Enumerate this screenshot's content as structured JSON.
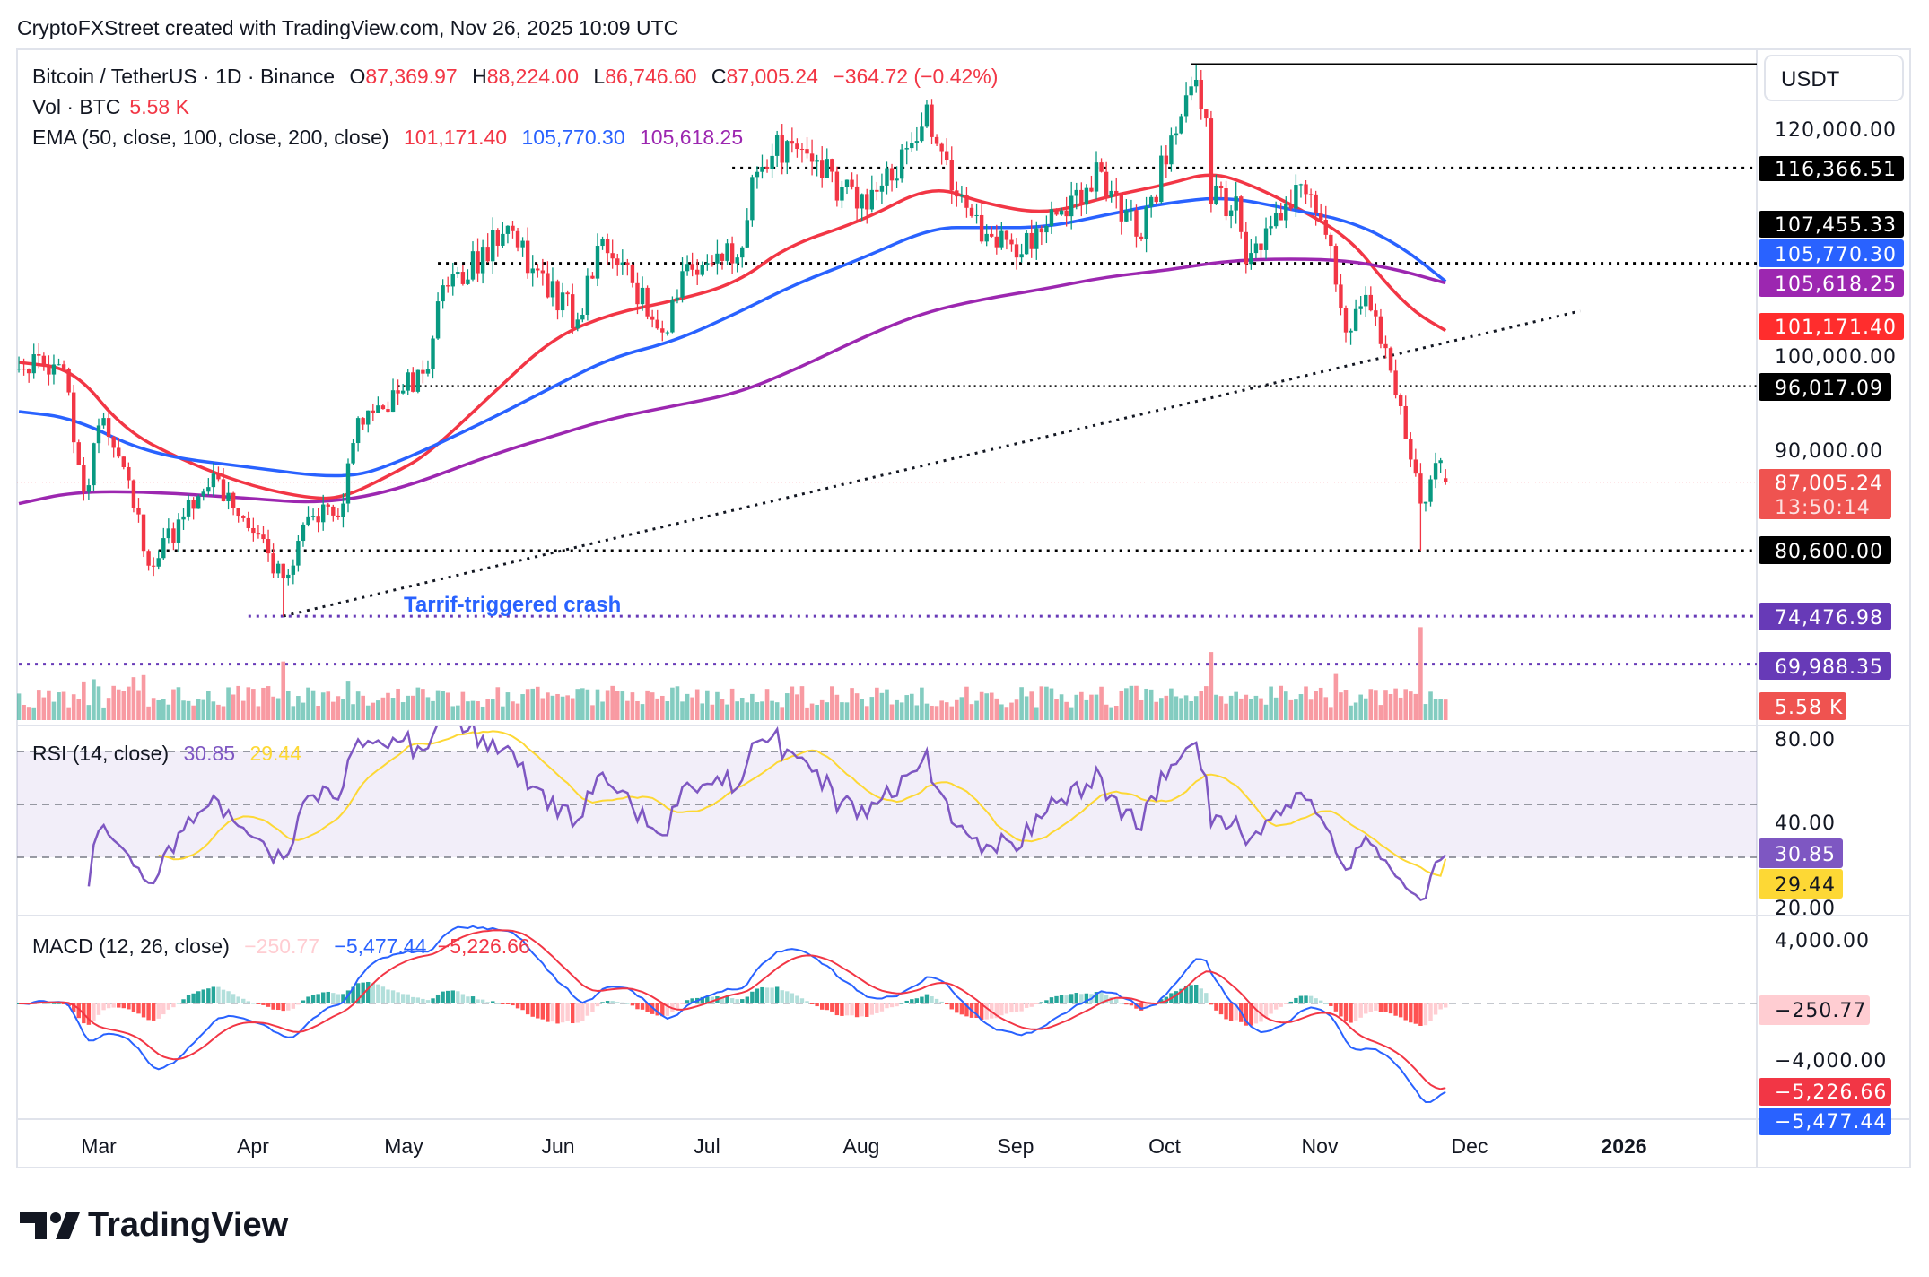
{
  "header": {
    "caption": "CryptoFXStreet created with TradingView.com, Nov 26, 2025 10:09 UTC"
  },
  "legend": {
    "symbol": "Bitcoin / TetherUS · 1D · Binance",
    "o_label": "O",
    "o": "87,369.97",
    "h_label": "H",
    "h": "88,224.00",
    "l_label": "L",
    "l": "86,746.60",
    "c_label": "C",
    "c": "87,005.24",
    "change": "−364.72 (−0.42%)",
    "vol_label": "Vol · BTC",
    "vol": "5.58 K",
    "ema_label": "EMA (50, close, 100, close, 200, close)",
    "ema50": "101,171.40",
    "ema100": "105,770.30",
    "ema200": "105,618.25",
    "rsi_label": "RSI (14, close)",
    "rsi": "30.85",
    "rsi_ma": "29.44",
    "macd_label": "MACD (12, 26, close)",
    "macd_hist": "−250.77",
    "macd": "−5,477.44",
    "macd_signal": "−5,226.66"
  },
  "price_axis": {
    "currency": "USDT",
    "ticks": [
      "120,000.00",
      "100,000.00",
      "90,000.00"
    ],
    "labels": {
      "level_116": "116,366.51",
      "level_107": "107,455.33",
      "ema100": "105,770.30",
      "ema200": "105,618.25",
      "ema50": "101,171.40",
      "level_96": "96,017.09",
      "last": "87,005.24",
      "countdown": "13:50:14",
      "level_80": "80,600.00",
      "level_74": "74,476.98",
      "level_69": "69,988.35",
      "volume": "5.58 K"
    },
    "rsi_ticks": [
      "80.00",
      "40.00",
      "20.00"
    ],
    "rsi_value": "30.85",
    "rsi_ma_value": "29.44",
    "macd_ticks": [
      "4,000.00",
      "−4,000.00"
    ],
    "macd_hist": "−250.77",
    "macd_signal": "−5,226.66",
    "macd": "−5,477.44"
  },
  "time_axis": [
    "Mar",
    "Apr",
    "May",
    "Jun",
    "Jul",
    "Aug",
    "Sep",
    "Oct",
    "Nov",
    "Dec",
    "2026"
  ],
  "annotation": {
    "text": "Tarrif-triggered crash",
    "color": "#2962ff"
  },
  "branding": {
    "logo_text": "TradingView"
  },
  "colors": {
    "up": "#089981",
    "down": "#f23645",
    "ema50": "#f23645",
    "ema100": "#2962ff",
    "ema200": "#9c27b0",
    "rsi": "#7e57c2",
    "rsi_ma": "#fdd835",
    "macd": "#2962ff",
    "signal": "#f23645",
    "levels_dark": "#000000",
    "levels_purple": "#673ab7"
  },
  "chart_data": {
    "type": "candlestick",
    "title": "Bitcoin / TetherUS · 1D · Binance",
    "ylim": [
      64000,
      127000
    ],
    "x_range": [
      "2025-02-13",
      "2026-01-10"
    ],
    "last_candle": {
      "date": "2025-11-26",
      "open": 87369.97,
      "high": 88224.0,
      "low": 86746.6,
      "close": 87005.24
    },
    "close_keypoints": [
      {
        "date": "2025-02-13",
        "close": 97600
      },
      {
        "date": "2025-02-22",
        "close": 97600
      },
      {
        "date": "2025-02-26",
        "close": 86100
      },
      {
        "date": "2025-03-02",
        "close": 93000
      },
      {
        "date": "2025-03-06",
        "close": 88400
      },
      {
        "date": "2025-03-11",
        "close": 79200
      },
      {
        "date": "2025-03-18",
        "close": 83800
      },
      {
        "date": "2025-03-24",
        "close": 87800
      },
      {
        "date": "2025-03-31",
        "close": 82700
      },
      {
        "date": "2025-04-07",
        "close": 78000,
        "low": 74476.98
      },
      {
        "date": "2025-04-12",
        "close": 83800
      },
      {
        "date": "2025-04-19",
        "close": 85000
      },
      {
        "date": "2025-04-22",
        "close": 93000
      },
      {
        "date": "2025-04-30",
        "close": 95300
      },
      {
        "date": "2025-05-06",
        "close": 97600
      },
      {
        "date": "2025-05-08",
        "close": 103900
      },
      {
        "date": "2025-05-21",
        "close": 110200
      },
      {
        "date": "2025-05-28",
        "close": 106800
      },
      {
        "date": "2025-06-05",
        "close": 102200
      },
      {
        "date": "2025-06-09",
        "close": 109100
      },
      {
        "date": "2025-06-16",
        "close": 105600
      },
      {
        "date": "2025-06-22",
        "close": 101000
      },
      {
        "date": "2025-06-27",
        "close": 107400
      },
      {
        "date": "2025-07-07",
        "close": 108000
      },
      {
        "date": "2025-07-11",
        "close": 116000
      },
      {
        "date": "2025-07-17",
        "close": 118900
      },
      {
        "date": "2025-08-02",
        "close": 112500
      },
      {
        "date": "2025-08-12",
        "close": 118900
      },
      {
        "date": "2025-08-14",
        "close": 122300
      },
      {
        "date": "2025-08-20",
        "close": 113700
      },
      {
        "date": "2025-08-26",
        "close": 110200
      },
      {
        "date": "2025-09-01",
        "close": 108000
      },
      {
        "date": "2025-09-09",
        "close": 112000
      },
      {
        "date": "2025-09-18",
        "close": 116000
      },
      {
        "date": "2025-09-26",
        "close": 109700
      },
      {
        "date": "2025-10-02",
        "close": 119400
      },
      {
        "date": "2025-10-06",
        "close": 124000
      },
      {
        "date": "2025-10-09",
        "close": 121000
      },
      {
        "date": "2025-10-10",
        "close": 113000
      },
      {
        "date": "2025-10-15",
        "close": 113700
      },
      {
        "date": "2025-10-17",
        "close": 107400
      },
      {
        "date": "2025-10-27",
        "close": 114800
      },
      {
        "date": "2025-11-03",
        "close": 109100
      },
      {
        "date": "2025-11-06",
        "close": 101000
      },
      {
        "date": "2025-11-10",
        "close": 104500
      },
      {
        "date": "2025-11-13",
        "close": 99900
      },
      {
        "date": "2025-11-17",
        "close": 94100
      },
      {
        "date": "2025-11-20",
        "close": 87800
      },
      {
        "date": "2025-11-21",
        "close": 85000,
        "low": 80600
      },
      {
        "date": "2025-11-24",
        "close": 88800
      },
      {
        "date": "2025-11-26",
        "close": 87005.24
      }
    ],
    "ema_series": [
      {
        "name": "EMA 50",
        "color": "#f23645",
        "points": [
          [
            "2025-02-13",
            98200
          ],
          [
            "2025-02-24",
            97600
          ],
          [
            "2025-03-06",
            91900
          ],
          [
            "2025-03-18",
            89000
          ],
          [
            "2025-03-31",
            86700
          ],
          [
            "2025-04-12",
            85500
          ],
          [
            "2025-04-19",
            85500
          ],
          [
            "2025-04-29",
            87800
          ],
          [
            "2025-05-06",
            89600
          ],
          [
            "2025-05-19",
            95300
          ],
          [
            "2025-05-31",
            100500
          ],
          [
            "2025-06-12",
            102800
          ],
          [
            "2025-06-24",
            103900
          ],
          [
            "2025-07-07",
            105600
          ],
          [
            "2025-07-17",
            109100
          ],
          [
            "2025-08-01",
            111400
          ],
          [
            "2025-08-15",
            114800
          ],
          [
            "2025-08-25",
            113100
          ],
          [
            "2025-09-07",
            112000
          ],
          [
            "2025-09-19",
            113700
          ],
          [
            "2025-10-01",
            114800
          ],
          [
            "2025-10-10",
            116000
          ],
          [
            "2025-10-18",
            114800
          ],
          [
            "2025-10-28",
            112500
          ],
          [
            "2025-11-07",
            109700
          ],
          [
            "2025-11-14",
            105600
          ],
          [
            "2025-11-20",
            102800
          ],
          [
            "2025-11-26",
            101171.4
          ]
        ]
      },
      {
        "name": "EMA 100",
        "color": "#2962ff",
        "points": [
          [
            "2025-02-13",
            93600
          ],
          [
            "2025-02-24",
            93000
          ],
          [
            "2025-03-11",
            89600
          ],
          [
            "2025-03-31",
            88400
          ],
          [
            "2025-04-19",
            87300
          ],
          [
            "2025-04-29",
            88600
          ],
          [
            "2025-05-19",
            93000
          ],
          [
            "2025-05-31",
            95900
          ],
          [
            "2025-06-12",
            98700
          ],
          [
            "2025-06-24",
            100100
          ],
          [
            "2025-07-07",
            102800
          ],
          [
            "2025-07-19",
            105600
          ],
          [
            "2025-08-01",
            107900
          ],
          [
            "2025-08-15",
            110800
          ],
          [
            "2025-08-25",
            110800
          ],
          [
            "2025-09-07",
            110800
          ],
          [
            "2025-09-19",
            112000
          ],
          [
            "2025-10-01",
            113100
          ],
          [
            "2025-10-13",
            113700
          ],
          [
            "2025-10-26",
            112500
          ],
          [
            "2025-11-07",
            111400
          ],
          [
            "2025-11-17",
            109100
          ],
          [
            "2025-11-26",
            105770.3
          ]
        ]
      },
      {
        "name": "EMA 200",
        "color": "#9c27b0",
        "points": [
          [
            "2025-02-13",
            85000
          ],
          [
            "2025-02-24",
            86100
          ],
          [
            "2025-03-11",
            86100
          ],
          [
            "2025-03-31",
            85500
          ],
          [
            "2025-04-14",
            85000
          ],
          [
            "2025-04-29",
            86100
          ],
          [
            "2025-05-19",
            89600
          ],
          [
            "2025-05-31",
            91300
          ],
          [
            "2025-06-12",
            93000
          ],
          [
            "2025-06-24",
            94100
          ],
          [
            "2025-07-07",
            95300
          ],
          [
            "2025-07-19",
            97600
          ],
          [
            "2025-08-01",
            100500
          ],
          [
            "2025-08-13",
            102800
          ],
          [
            "2025-08-25",
            104100
          ],
          [
            "2025-09-07",
            105100
          ],
          [
            "2025-09-19",
            106200
          ],
          [
            "2025-10-01",
            106800
          ],
          [
            "2025-10-13",
            107700
          ],
          [
            "2025-10-26",
            107900
          ],
          [
            "2025-11-07",
            107700
          ],
          [
            "2025-11-17",
            106800
          ],
          [
            "2025-11-26",
            105618.25
          ]
        ]
      }
    ],
    "horizontal_levels": [
      {
        "value": 116366.51,
        "style": "dotted",
        "color": "#000000",
        "from": "2025-07-06"
      },
      {
        "value": 107455.33,
        "style": "dotted",
        "color": "#000000",
        "from": "2025-05-08"
      },
      {
        "value": 96017.09,
        "style": "dotted-thin",
        "color": "#000000",
        "from": "2025-04-30"
      },
      {
        "value": 80600.0,
        "style": "dotted",
        "color": "#000000",
        "from": "2025-03-13"
      },
      {
        "value": 74476.98,
        "style": "dotted",
        "color": "#673ab7",
        "from": "2025-03-31"
      },
      {
        "value": 69988.35,
        "style": "dotted",
        "color": "#673ab7",
        "from": "2025-02-13"
      },
      {
        "value": 126100,
        "style": "solid",
        "color": "#000000",
        "from": "2025-10-06"
      }
    ],
    "trendline": {
      "from": [
        "2025-04-07",
        74476.98
      ],
      "to": [
        "2025-12-23",
        103000
      ]
    },
    "rsi": {
      "period": 14,
      "levels": [
        70,
        50,
        30
      ],
      "ylim": [
        20,
        80
      ],
      "last": 30.85,
      "ma_last": 29.44
    },
    "macd": {
      "fast": 12,
      "slow": 26,
      "signal": 9,
      "ylim": [
        -6000,
        6000
      ],
      "last_macd": -5477.44,
      "last_signal": -5226.66,
      "last_hist": -250.77
    },
    "volume_last": "5.58 K"
  }
}
